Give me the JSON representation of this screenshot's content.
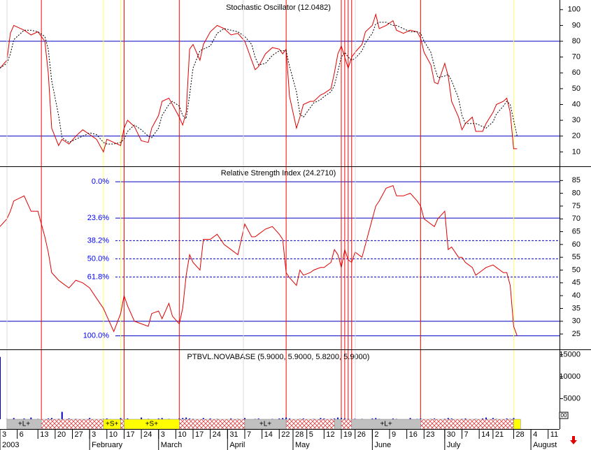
{
  "chart_data": [
    {
      "type": "line",
      "title": "Stochastic Oscillator (12.0482)",
      "xlim": [
        0,
        162.3
      ],
      "ylim": [
        0,
        103
      ],
      "yticks": [
        10,
        20,
        30,
        40,
        50,
        60,
        70,
        80,
        90,
        100
      ],
      "hlines": [
        80,
        20
      ],
      "hline_color": "#0000c0",
      "x": [
        0,
        2,
        3,
        4,
        7,
        9,
        11,
        13,
        14,
        15,
        17,
        18,
        20,
        22,
        24,
        26,
        28,
        30,
        31,
        33,
        35,
        36,
        37,
        39,
        41,
        43,
        44,
        46,
        47,
        49,
        50,
        52,
        53,
        54,
        55,
        56,
        58,
        59,
        61,
        63,
        65,
        67,
        69,
        71,
        73,
        74,
        75,
        77,
        79,
        81,
        82,
        83,
        84,
        86,
        87,
        88,
        90,
        91,
        93,
        94,
        96,
        97,
        98,
        99,
        100,
        101,
        102,
        103,
        105,
        106,
        108,
        109,
        110,
        112,
        114,
        115,
        117,
        119,
        121,
        122,
        123,
        125,
        126,
        127,
        129,
        130,
        131,
        133,
        134,
        135,
        137,
        138,
        140,
        141,
        143,
        144,
        146,
        147,
        148,
        149,
        150
      ],
      "series": [
        {
          "color": "#e00000",
          "dashed": false,
          "values": [
            63,
            68,
            85,
            90,
            87,
            84,
            86,
            80,
            60,
            25,
            14,
            18,
            15,
            20,
            24,
            21,
            18,
            10,
            18,
            16,
            14,
            25,
            30,
            26,
            17,
            16,
            25,
            33,
            42,
            44,
            40,
            32,
            27,
            35,
            75,
            78,
            68,
            78,
            86,
            90,
            88,
            84,
            85,
            80,
            68,
            62,
            64,
            72,
            76,
            75,
            72,
            75,
            45,
            25,
            32,
            40,
            42,
            42,
            46,
            47,
            50,
            60,
            72,
            77,
            70,
            63,
            70,
            73,
            78,
            86,
            90,
            97,
            88,
            90,
            93,
            87,
            85,
            87,
            86,
            82,
            73,
            65,
            54,
            53,
            66,
            58,
            42,
            32,
            24,
            28,
            32,
            23,
            23,
            28,
            35,
            40,
            42,
            44,
            35,
            12,
            12
          ]
        },
        {
          "color": "#000000",
          "dashed": true,
          "values": [
            63,
            66,
            72,
            81,
            87,
            87,
            86,
            83,
            75,
            55,
            33,
            19,
            16,
            18,
            20,
            22,
            21,
            16,
            15,
            15,
            16,
            18,
            23,
            27,
            24,
            20,
            19,
            25,
            33,
            40,
            42,
            39,
            33,
            31,
            46,
            63,
            74,
            75,
            77,
            85,
            88,
            87,
            86,
            83,
            78,
            70,
            65,
            66,
            71,
            74,
            74,
            74,
            64,
            48,
            34,
            32,
            38,
            41,
            43,
            45,
            48,
            52,
            61,
            70,
            73,
            70,
            68,
            69,
            74,
            79,
            85,
            91,
            92,
            92,
            90,
            90,
            88,
            86,
            86,
            85,
            80,
            73,
            64,
            57,
            58,
            59,
            55,
            44,
            33,
            28,
            28,
            28,
            26,
            25,
            29,
            34,
            39,
            42,
            40,
            30,
            20
          ]
        }
      ]
    },
    {
      "type": "line",
      "title": "Relative Strength Index (24.2710)",
      "xlim": [
        0,
        162.3
      ],
      "ylim": [
        19,
        90
      ],
      "yticks": [
        25,
        30,
        35,
        40,
        45,
        50,
        55,
        60,
        65,
        70,
        75,
        80,
        85
      ],
      "hlines": [
        30
      ],
      "hline_color": "#0000c0",
      "fib_levels": [
        {
          "value": 84.5,
          "label": "0.0%",
          "dashed": false
        },
        {
          "value": 70.3,
          "label": "23.6%",
          "dashed": false
        },
        {
          "value": 61.5,
          "label": "38.2%",
          "dashed": true
        },
        {
          "value": 54.4,
          "label": "50.0%",
          "dashed": true
        },
        {
          "value": 47.3,
          "label": "61.8%",
          "dashed": true
        },
        {
          "value": 24.3,
          "label": "100.0%",
          "dashed": false
        }
      ],
      "fib_color": "#0000ff",
      "x": [
        0,
        2,
        3,
        4,
        7,
        9,
        11,
        13,
        14,
        15,
        17,
        18,
        20,
        22,
        24,
        26,
        28,
        30,
        31,
        33,
        35,
        36,
        37,
        39,
        41,
        43,
        44,
        46,
        47,
        49,
        50,
        52,
        53,
        54,
        55,
        56,
        58,
        59,
        61,
        63,
        65,
        67,
        69,
        71,
        73,
        74,
        75,
        77,
        79,
        81,
        82,
        83,
        84,
        86,
        87,
        88,
        90,
        91,
        93,
        94,
        96,
        97,
        98,
        99,
        100,
        101,
        102,
        103,
        105,
        106,
        108,
        109,
        110,
        112,
        114,
        115,
        117,
        119,
        121,
        122,
        123,
        125,
        126,
        127,
        129,
        130,
        131,
        133,
        134,
        135,
        137,
        138,
        140,
        141,
        143,
        144,
        146,
        147,
        148,
        149,
        150
      ],
      "series": [
        {
          "color": "#e00000",
          "dashed": false,
          "values": [
            67,
            70,
            73,
            77,
            79,
            73,
            73,
            63,
            57,
            49,
            46,
            45,
            43,
            46,
            45,
            43,
            39,
            35,
            32,
            26,
            33,
            40,
            36,
            30,
            29,
            28,
            33,
            34,
            31,
            37,
            32,
            29,
            35,
            48,
            56,
            53,
            50,
            62,
            62,
            64,
            60,
            58,
            56,
            68,
            63,
            63,
            64,
            66,
            67,
            64,
            62,
            49,
            47,
            44,
            50,
            48,
            49,
            50,
            51,
            51,
            53,
            58,
            56,
            51,
            58,
            54,
            53,
            57,
            55,
            60,
            70,
            75,
            77,
            82,
            83,
            79,
            79,
            80,
            77,
            75,
            70,
            68,
            67,
            70,
            73,
            58,
            59,
            55,
            55,
            53,
            51,
            48,
            50,
            51,
            52,
            51,
            49,
            49,
            44,
            28,
            24.27
          ]
        }
      ]
    },
    {
      "type": "bar",
      "title": "PTBVL.NOVABASE (5.9000, 5.9000, 5.8200, 5.9000)",
      "xlim": [
        0,
        162.3
      ],
      "ylim": [
        0,
        15900
      ],
      "yticks": [
        5000,
        10000,
        15000
      ],
      "color": "#0000c0",
      "x": [
        0,
        2,
        3,
        4,
        7,
        9,
        11,
        13,
        14,
        15,
        17,
        18,
        20,
        22,
        24,
        26,
        28,
        30,
        31,
        33,
        35,
        36,
        37,
        39,
        41,
        43,
        44,
        46,
        47,
        49,
        50,
        52,
        53,
        54,
        55,
        56,
        58,
        59,
        61,
        63,
        65,
        67,
        69,
        71,
        73,
        74,
        75,
        77,
        79,
        81,
        82,
        83,
        84,
        86,
        87,
        88,
        90,
        91,
        93,
        94,
        96,
        97,
        98,
        99,
        100,
        101,
        102,
        103,
        105,
        106,
        108,
        109,
        110,
        112,
        114,
        115,
        117,
        119,
        121,
        122,
        123,
        125,
        126,
        127,
        129,
        130,
        131,
        133,
        134,
        135,
        137,
        138,
        140,
        141,
        143,
        144,
        146,
        147,
        148,
        149,
        150
      ],
      "values": [
        14500,
        400,
        300,
        600,
        500,
        700,
        400,
        300,
        500,
        600,
        400,
        2000,
        500,
        400,
        300,
        600,
        300,
        400,
        500,
        300,
        600,
        400,
        500,
        300,
        700,
        400,
        300,
        500,
        600,
        400,
        300,
        500,
        600,
        700,
        500,
        400,
        300,
        600,
        500,
        400,
        300,
        500,
        400,
        600,
        300,
        400,
        500,
        300,
        400,
        500,
        600,
        700,
        500,
        300,
        400,
        500,
        300,
        400,
        600,
        500,
        400,
        500,
        700,
        600,
        500,
        400,
        300,
        500,
        400,
        300,
        500,
        600,
        400,
        300,
        500,
        400,
        300,
        600,
        400,
        500,
        300,
        400,
        500,
        300,
        400,
        600,
        500,
        300,
        400,
        500,
        300,
        400,
        500,
        700,
        600,
        400,
        300,
        500,
        400,
        600,
        300
      ]
    }
  ],
  "timeline": {
    "days": [
      {
        "x": 0,
        "label": "3"
      },
      {
        "x": 5,
        "label": "6"
      },
      {
        "x": 11,
        "label": "13"
      },
      {
        "x": 16,
        "label": "20"
      },
      {
        "x": 21,
        "label": "27"
      },
      {
        "x": 26,
        "label": "3"
      },
      {
        "x": 31,
        "label": "10"
      },
      {
        "x": 36,
        "label": "17"
      },
      {
        "x": 41,
        "label": "24"
      },
      {
        "x": 46,
        "label": "3"
      },
      {
        "x": 51,
        "label": "10"
      },
      {
        "x": 56,
        "label": "17"
      },
      {
        "x": 61,
        "label": "24"
      },
      {
        "x": 66,
        "label": "31"
      },
      {
        "x": 71,
        "label": "7"
      },
      {
        "x": 76,
        "label": "14"
      },
      {
        "x": 81,
        "label": "22"
      },
      {
        "x": 85,
        "label": "28"
      },
      {
        "x": 89,
        "label": "5"
      },
      {
        "x": 94,
        "label": "12"
      },
      {
        "x": 99,
        "label": "19"
      },
      {
        "x": 103,
        "label": "26"
      },
      {
        "x": 108,
        "label": "2"
      },
      {
        "x": 113,
        "label": "9"
      },
      {
        "x": 118,
        "label": "16"
      },
      {
        "x": 123,
        "label": "23"
      },
      {
        "x": 129,
        "label": "30"
      },
      {
        "x": 134,
        "label": "7"
      },
      {
        "x": 139,
        "label": "14"
      },
      {
        "x": 143,
        "label": "21"
      },
      {
        "x": 149,
        "label": "28"
      },
      {
        "x": 154,
        "label": "4"
      },
      {
        "x": 159,
        "label": "11"
      }
    ],
    "months": [
      {
        "x": 0,
        "label": "2003"
      },
      {
        "x": 26,
        "label": "February"
      },
      {
        "x": 46,
        "label": "March"
      },
      {
        "x": 66,
        "label": "April"
      },
      {
        "x": 85,
        "label": "May"
      },
      {
        "x": 108,
        "label": "June"
      },
      {
        "x": 129,
        "label": "July"
      },
      {
        "x": 154,
        "label": "August"
      }
    ],
    "bands": [
      {
        "start": 2,
        "end": 12,
        "kind": "long",
        "label": "+L+"
      },
      {
        "start": 12,
        "end": 30,
        "kind": "flat"
      },
      {
        "start": 30,
        "end": 35,
        "kind": "short",
        "label": "+S+"
      },
      {
        "start": 35,
        "end": 36,
        "kind": "flat"
      },
      {
        "start": 36,
        "end": 52,
        "kind": "short",
        "label": "+S+"
      },
      {
        "start": 52,
        "end": 71,
        "kind": "flat"
      },
      {
        "start": 71,
        "end": 83,
        "kind": "long",
        "label": "+L+"
      },
      {
        "start": 83,
        "end": 97,
        "kind": "flat"
      },
      {
        "start": 97,
        "end": 99,
        "kind": "long"
      },
      {
        "start": 99,
        "end": 102,
        "kind": "flat"
      },
      {
        "start": 102,
        "end": 122,
        "kind": "long",
        "label": "+L+"
      },
      {
        "start": 122,
        "end": 149,
        "kind": "flat"
      },
      {
        "start": 149,
        "end": 151,
        "kind": "short"
      }
    ],
    "band_colors": {
      "long": "#c0c0c0",
      "short": "#ffff00"
    },
    "signals": [
      {
        "x": 12,
        "color": "#ff0000"
      },
      {
        "x": 30,
        "color": "#ffff66"
      },
      {
        "x": 35,
        "color": "#ffff66"
      },
      {
        "x": 36,
        "color": "#ff0000"
      },
      {
        "x": 52,
        "color": "#ff0000"
      },
      {
        "x": 83,
        "color": "#ff0000"
      },
      {
        "x": 99,
        "color": "#ff0000"
      },
      {
        "x": 100,
        "color": "#ff0000"
      },
      {
        "x": 101,
        "color": "#ff0000"
      },
      {
        "x": 102,
        "color": "#ff0000"
      },
      {
        "x": 122,
        "color": "#ff0000"
      },
      {
        "x": 149,
        "color": "#ffff66"
      }
    ],
    "scroll_label": "00"
  }
}
